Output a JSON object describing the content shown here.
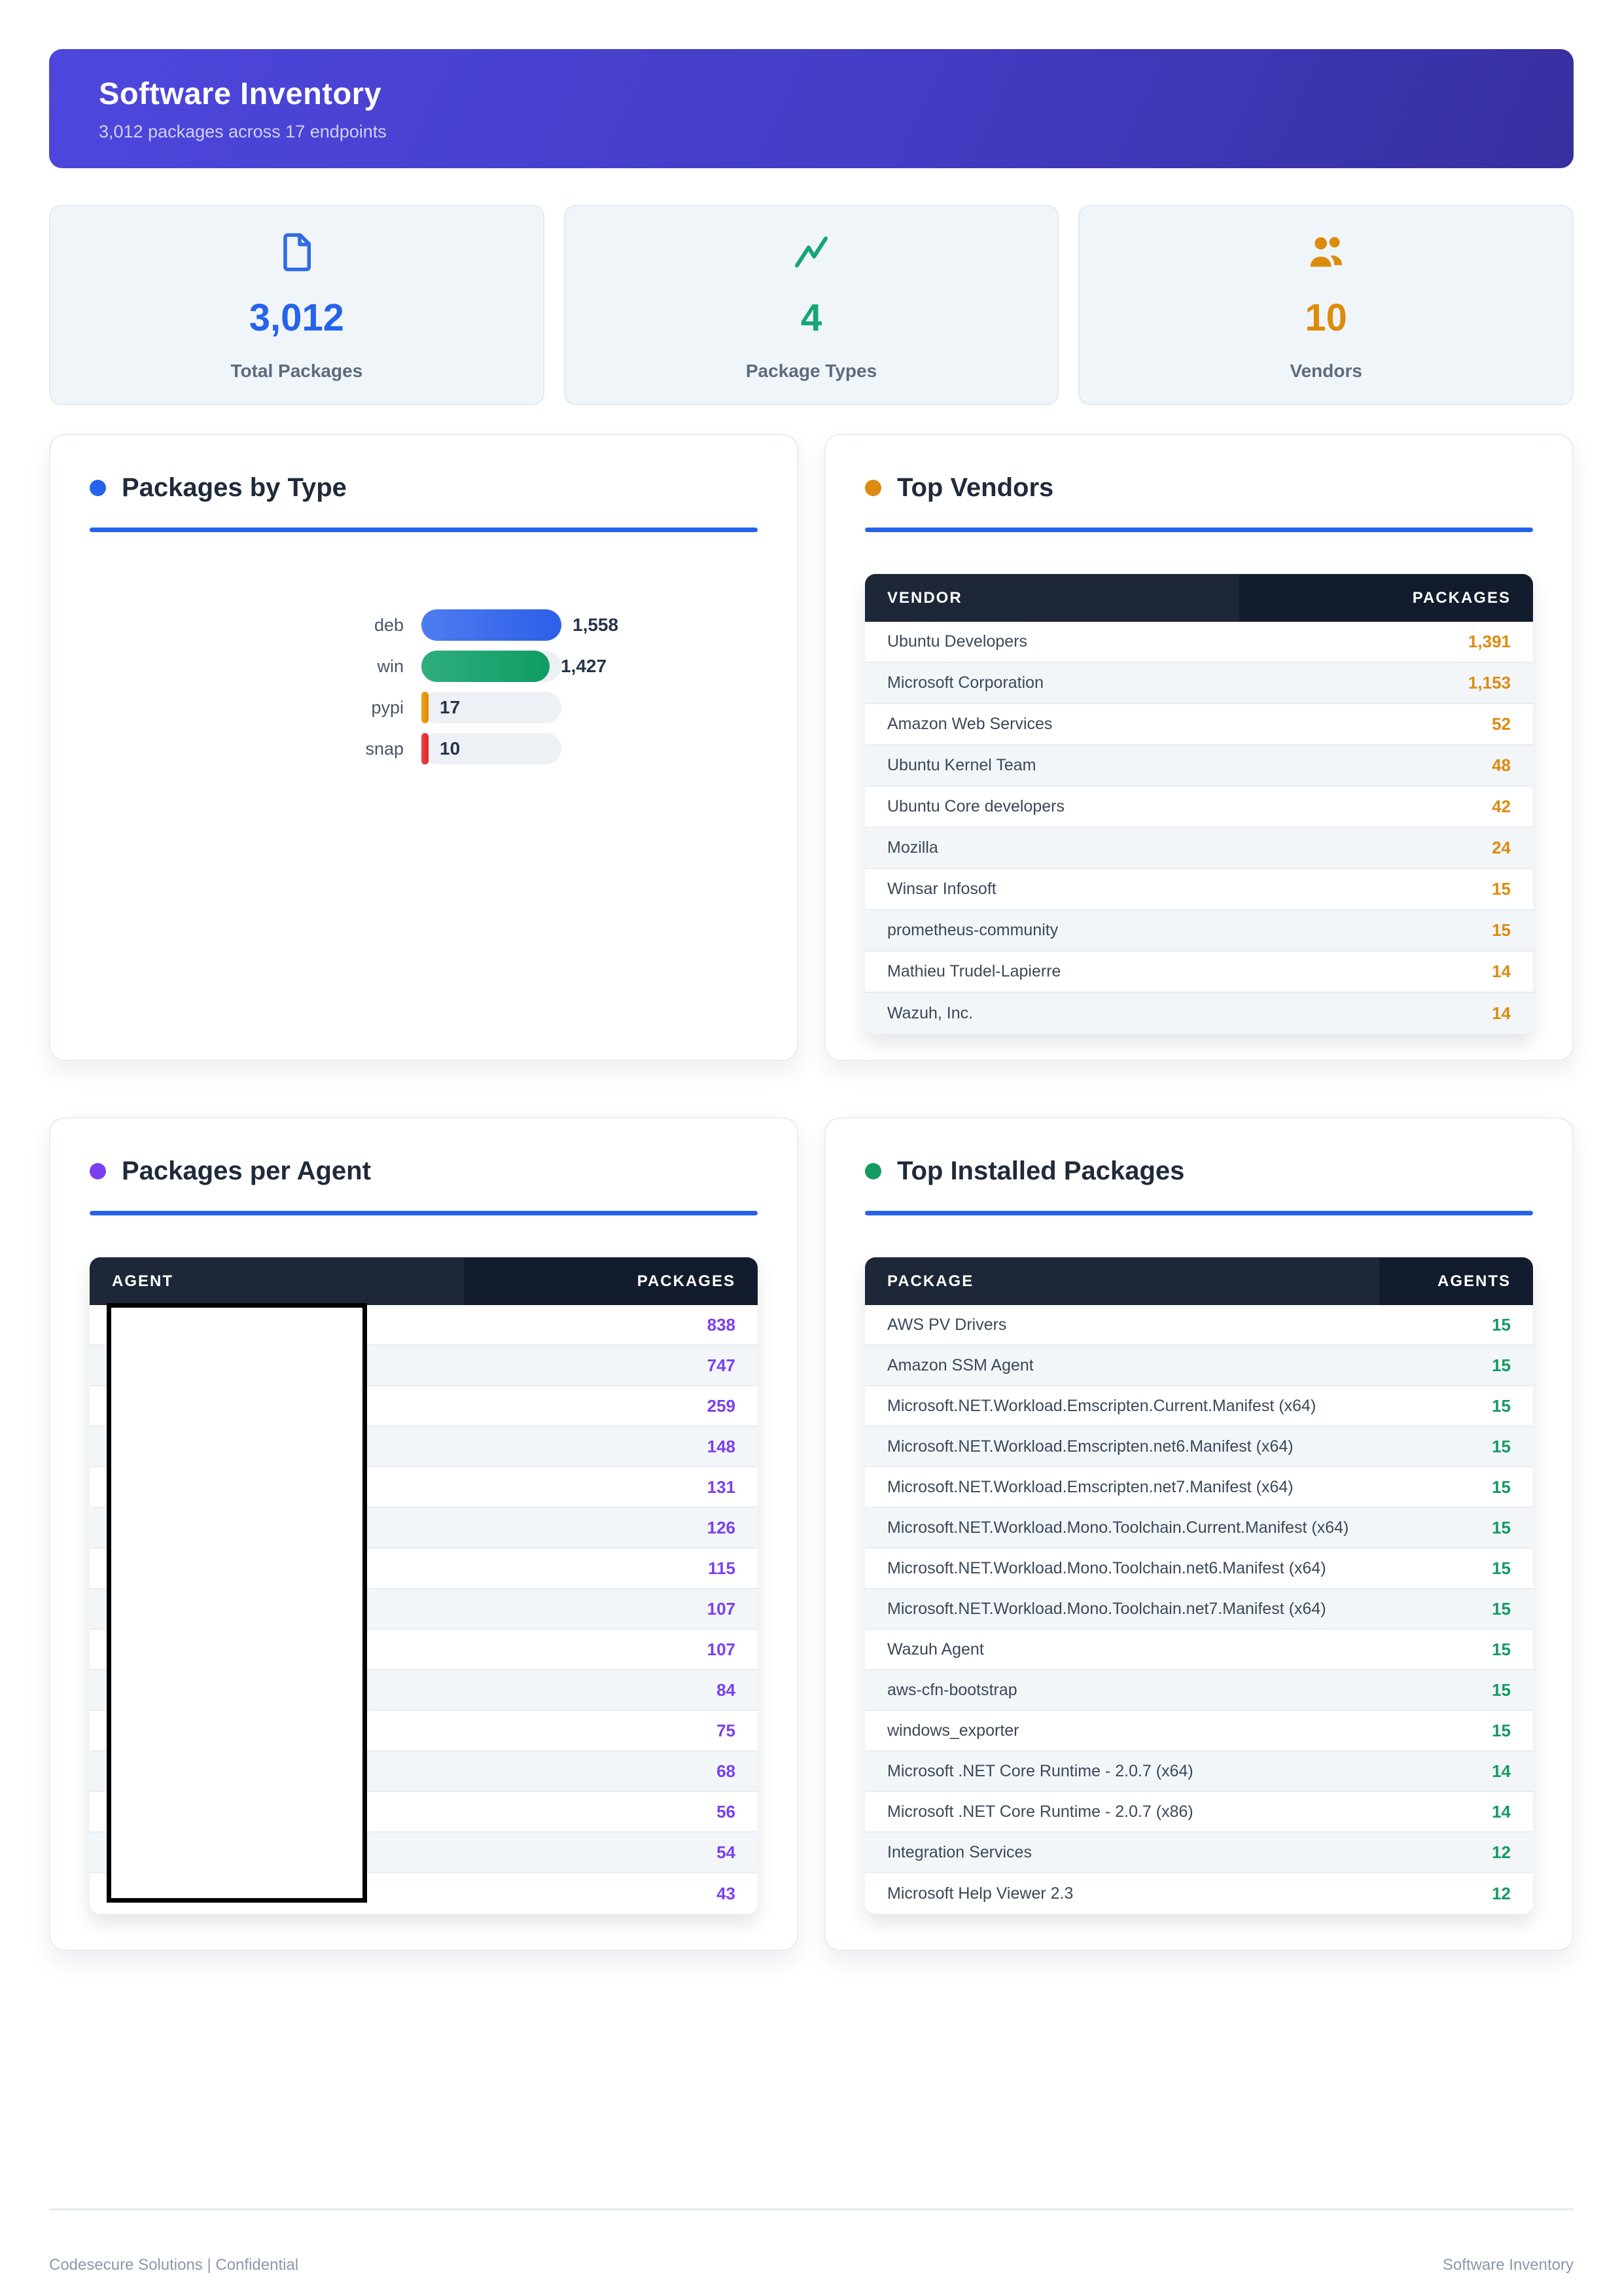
{
  "header": {
    "title": "Software Inventory",
    "subtitle": "3,012 packages across 17 endpoints"
  },
  "stats": [
    {
      "icon": "document-icon",
      "value": "3,012",
      "label": "Total Packages",
      "color": "#2563eb"
    },
    {
      "icon": "trending-up-icon",
      "value": "4",
      "label": "Package Types",
      "color": "#17a673"
    },
    {
      "icon": "people-icon",
      "value": "10",
      "label": "Vendors",
      "color": "#dd8b0b"
    }
  ],
  "chart_data": {
    "type": "bar",
    "orientation": "horizontal",
    "title": "Packages by Type",
    "categories": [
      "deb",
      "win",
      "pypi",
      "snap"
    ],
    "values": [
      1558,
      1427,
      17,
      10
    ],
    "max": 1558
  },
  "type_chart": {
    "title": "Packages by Type",
    "accent_color": "#2563eb",
    "rows": [
      {
        "label": "deb",
        "display": "1,558",
        "value": 1558,
        "color_start": "#4e7cf0",
        "color_end": "#2d5fe8"
      },
      {
        "label": "win",
        "display": "1,427",
        "value": 1427,
        "color_start": "#2fae7e",
        "color_end": "#0f9c64"
      },
      {
        "label": "pypi",
        "display": "17",
        "value": 17,
        "color_start": "#f2a118",
        "color_end": "#df8a0c"
      },
      {
        "label": "snap",
        "display": "10",
        "value": 10,
        "color_start": "#ef4444",
        "color_end": "#d92626"
      }
    ]
  },
  "top_vendors": {
    "title": "Top Vendors",
    "accent_color": "#dd8b0e",
    "columns": [
      "VENDOR",
      "PACKAGES"
    ],
    "rows": [
      {
        "name": "Ubuntu Developers",
        "count": "1,391"
      },
      {
        "name": "Microsoft Corporation",
        "count": "1,153"
      },
      {
        "name": "Amazon Web Services",
        "count": "52"
      },
      {
        "name": "Ubuntu Kernel Team",
        "count": "48"
      },
      {
        "name": "Ubuntu Core developers",
        "count": "42"
      },
      {
        "name": "Mozilla",
        "count": "24"
      },
      {
        "name": "Winsar Infosoft",
        "count": "15"
      },
      {
        "name": "prometheus-community",
        "count": "15"
      },
      {
        "name": "Mathieu Trudel-Lapierre",
        "count": "14"
      },
      {
        "name": "Wazuh, Inc.",
        "count": "14"
      }
    ]
  },
  "packages_per_agent": {
    "title": "Packages per Agent",
    "accent_color": "#7b3ff0",
    "columns": [
      "AGENT",
      "PACKAGES"
    ],
    "rows": [
      {
        "name": "",
        "count": "838"
      },
      {
        "name": "",
        "count": "747"
      },
      {
        "name": "",
        "count": "259"
      },
      {
        "name": "",
        "count": "148"
      },
      {
        "name": "",
        "count": "131"
      },
      {
        "name": "",
        "count": "126"
      },
      {
        "name": "",
        "count": "115"
      },
      {
        "name": "",
        "count": "107"
      },
      {
        "name": "",
        "count": "107"
      },
      {
        "name": "",
        "count": "84"
      },
      {
        "name": "",
        "count": "75"
      },
      {
        "name": "",
        "count": "68"
      },
      {
        "name": "",
        "count": "56"
      },
      {
        "name": "",
        "count": "54"
      },
      {
        "name": "",
        "count": "43"
      }
    ]
  },
  "top_installed": {
    "title": "Top Installed Packages",
    "accent_color": "#149a62",
    "columns": [
      "PACKAGE",
      "AGENTS"
    ],
    "rows": [
      {
        "name": "AWS PV Drivers",
        "count": "15"
      },
      {
        "name": "Amazon SSM Agent",
        "count": "15"
      },
      {
        "name": "Microsoft.NET.Workload.Emscripten.Current.Manifest (x64)",
        "count": "15"
      },
      {
        "name": "Microsoft.NET.Workload.Emscripten.net6.Manifest (x64)",
        "count": "15"
      },
      {
        "name": "Microsoft.NET.Workload.Emscripten.net7.Manifest (x64)",
        "count": "15"
      },
      {
        "name": "Microsoft.NET.Workload.Mono.Toolchain.Current.Manifest (x64)",
        "count": "15"
      },
      {
        "name": "Microsoft.NET.Workload.Mono.Toolchain.net6.Manifest (x64)",
        "count": "15"
      },
      {
        "name": "Microsoft.NET.Workload.Mono.Toolchain.net7.Manifest (x64)",
        "count": "15"
      },
      {
        "name": "Wazuh Agent",
        "count": "15"
      },
      {
        "name": "aws-cfn-bootstrap",
        "count": "15"
      },
      {
        "name": "windows_exporter",
        "count": "15"
      },
      {
        "name": "Microsoft .NET Core Runtime - 2.0.7 (x64)",
        "count": "14"
      },
      {
        "name": "Microsoft .NET Core Runtime - 2.0.7 (x86)",
        "count": "14"
      },
      {
        "name": "Integration Services",
        "count": "12"
      },
      {
        "name": "Microsoft Help Viewer 2.3",
        "count": "12"
      }
    ]
  },
  "footer": {
    "left": "Codesecure Solutions | Confidential",
    "right": "Software Inventory"
  }
}
